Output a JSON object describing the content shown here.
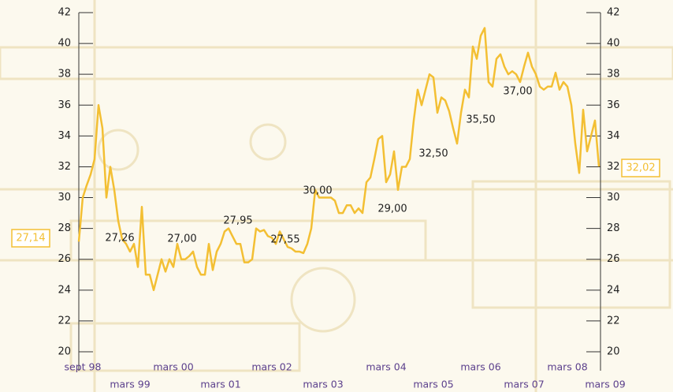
{
  "chart_data": {
    "type": "line",
    "categories": [
      null,
      "sept 98",
      null,
      null,
      null,
      null,
      null,
      null,
      null,
      null,
      null,
      null,
      null,
      "mars 99",
      null,
      null,
      null,
      null,
      null,
      null,
      null,
      null,
      null,
      null,
      "mars 00",
      null,
      null,
      null,
      null,
      null,
      null,
      null,
      null,
      null,
      null,
      null,
      "mars 01",
      null,
      null,
      null,
      null,
      null,
      null,
      null,
      null,
      null,
      null,
      null,
      null,
      "mars 02",
      null,
      null,
      null,
      null,
      null,
      null,
      null,
      null,
      null,
      null,
      null,
      null,
      "mars 03",
      null,
      null,
      null,
      null,
      null,
      null,
      null,
      null,
      null,
      null,
      null,
      null,
      null,
      null,
      null,
      "mars 04",
      null,
      null,
      null,
      null,
      null,
      null,
      null,
      null,
      null,
      null,
      null,
      "mars 05",
      null,
      null,
      null,
      null,
      null,
      null,
      null,
      null,
      null,
      null,
      null,
      "mars 06",
      null,
      null,
      null,
      null,
      null,
      null,
      null,
      null,
      null,
      null,
      "mars 07",
      null,
      null,
      null,
      null,
      null,
      null,
      null,
      null,
      null,
      null,
      "mars 08",
      null,
      null,
      null,
      null,
      null,
      null,
      null,
      "mars 09"
    ],
    "series": [
      {
        "color": "#f3bf33",
        "values": [
          27.14,
          30,
          30.8,
          31.5,
          32.5,
          36,
          34.5,
          30,
          32,
          30.5,
          28.5,
          27.3,
          27,
          26.5,
          27,
          25.5,
          29.4,
          25,
          25,
          24,
          25,
          26,
          25.2,
          26,
          25.5,
          27,
          26,
          26,
          26.2,
          26.5,
          25.5,
          25,
          25,
          27,
          25.3,
          26.5,
          27,
          27.8,
          28,
          27.5,
          27,
          27,
          25.8,
          25.8,
          26,
          28,
          27.8,
          27.9,
          27.5,
          27.4,
          27,
          27.8,
          27.3,
          26.8,
          26.7,
          26.5,
          26.5,
          26.4,
          27,
          28,
          30.5,
          30,
          30,
          30,
          30,
          29.8,
          29,
          29,
          29.5,
          29.5,
          29,
          29.3,
          29,
          31,
          31.3,
          32.5,
          33.8,
          34,
          31,
          31.5,
          33,
          30.5,
          32,
          32,
          32.5,
          35,
          37,
          36,
          37,
          38,
          37.8,
          35.5,
          36.5,
          36.3,
          35.6,
          34.5,
          33.5,
          35.5,
          37,
          36.5,
          39.8,
          39,
          40.5,
          41,
          37.5,
          37.2,
          39,
          39.3,
          38.5,
          38,
          38.2,
          38,
          37.5,
          38.5,
          39.4,
          38.5,
          38,
          37.2,
          37,
          37.2,
          37.2,
          38.1,
          37,
          37.5,
          37.2,
          36,
          33.5,
          31.6,
          35.7,
          33,
          34,
          35,
          32.02
        ]
      }
    ],
    "annotations": [
      "27,26",
      "27,00",
      "27,95",
      "27,55",
      "30,00",
      "29,00",
      "32,50",
      "35,50",
      "37,00"
    ],
    "start_label": "27,14",
    "end_label": "32,02",
    "ylim": [
      20,
      42
    ],
    "yticks": [
      20,
      22,
      24,
      26,
      28,
      30,
      32,
      34,
      36,
      38,
      40,
      42
    ],
    "y2lim": [
      20,
      42
    ],
    "y2ticks": [
      20,
      22,
      24,
      26,
      28,
      30,
      32,
      34,
      36,
      38,
      40,
      42
    ]
  }
}
